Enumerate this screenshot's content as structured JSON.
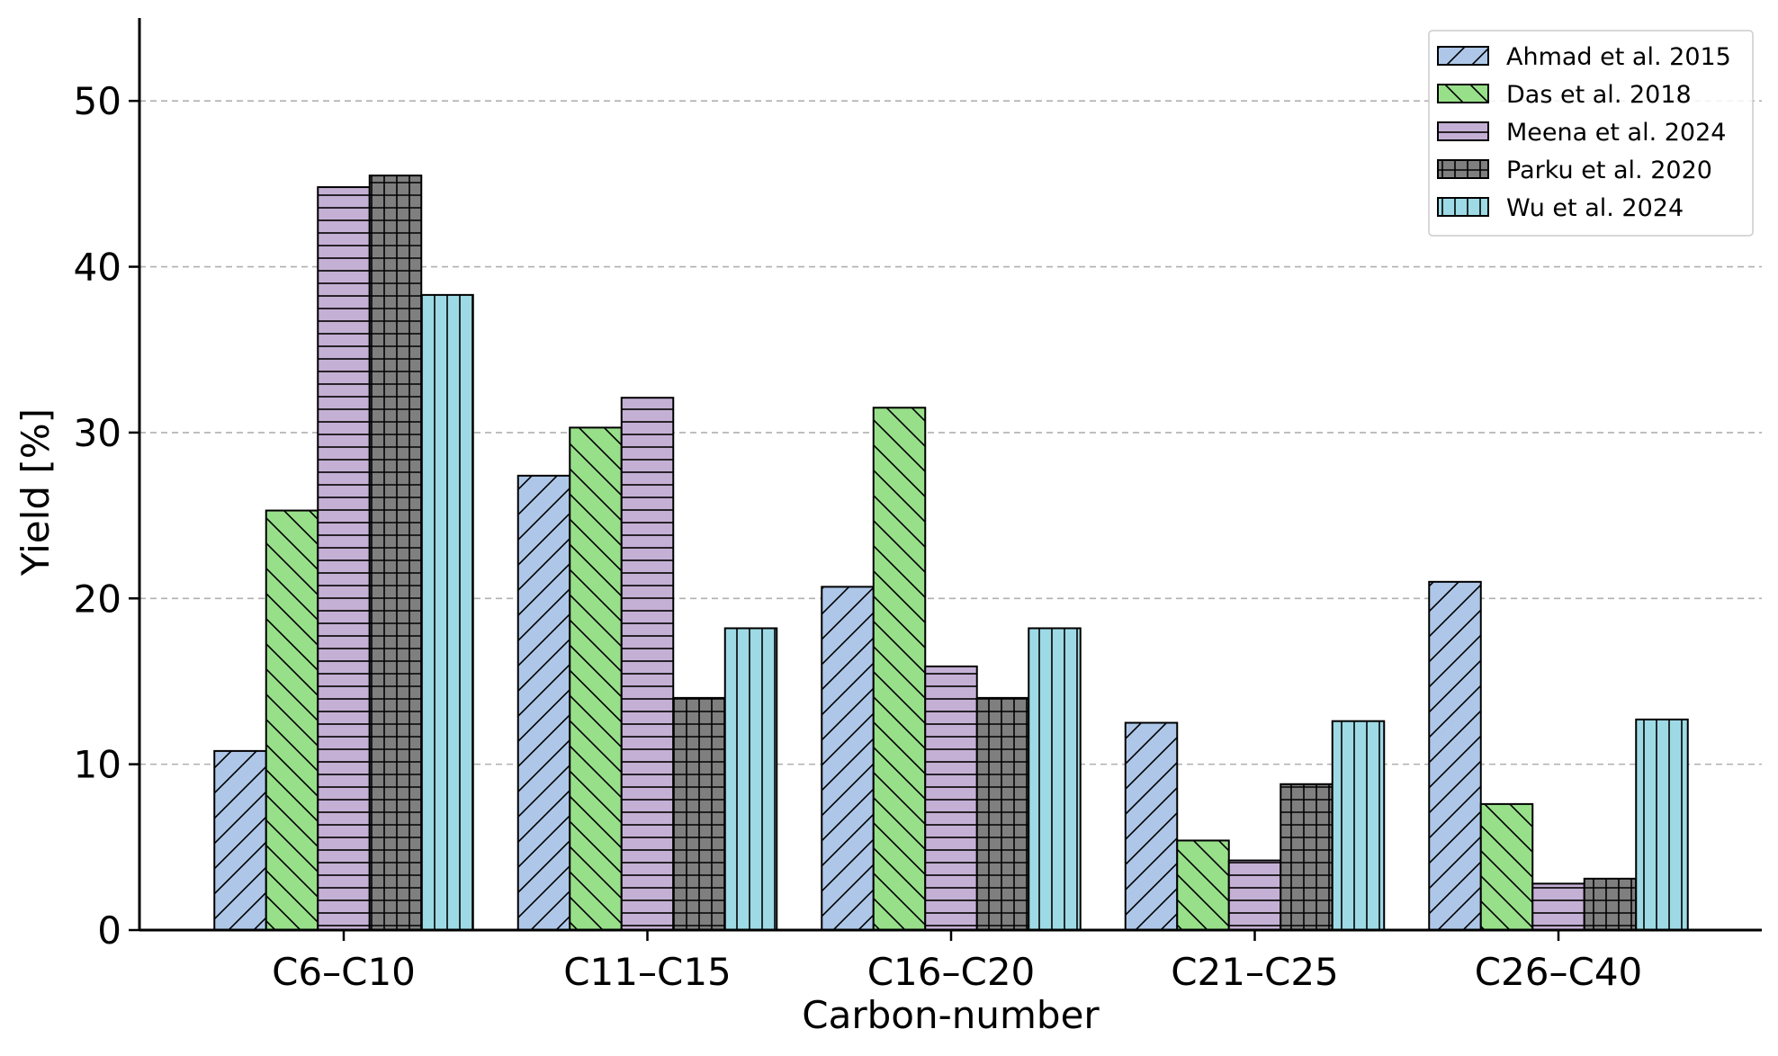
{
  "chart_data": {
    "type": "bar",
    "title": "",
    "xlabel": "Carbon-number",
    "ylabel": "Yield [%]",
    "ylim": [
      0,
      55
    ],
    "yticks": [
      0,
      10,
      20,
      30,
      40,
      50
    ],
    "grid": "y-dashed",
    "legend_position": "top-right",
    "categories": [
      "C6–C10",
      "C11–C15",
      "C16–C20",
      "C21–C25",
      "C26–C40"
    ],
    "series": [
      {
        "name": "Ahmad et al. 2015",
        "color": "#aec7e8",
        "hatch": "diag-up",
        "values": [
          10.8,
          27.4,
          20.7,
          12.5,
          21.0
        ]
      },
      {
        "name": "Das et al. 2018",
        "color": "#98df8a",
        "hatch": "diag-down",
        "values": [
          25.3,
          30.3,
          31.5,
          5.4,
          7.6
        ]
      },
      {
        "name": "Meena et al. 2024",
        "color": "#c5b0d5",
        "hatch": "horizontal",
        "values": [
          44.8,
          32.1,
          15.9,
          4.2,
          2.8
        ]
      },
      {
        "name": "Parku et al. 2020",
        "color": "#7f7f7f",
        "hatch": "grid",
        "values": [
          45.5,
          14.0,
          14.0,
          8.8,
          3.1
        ]
      },
      {
        "name": "Wu et al. 2024",
        "color": "#9edae5",
        "hatch": "vertical",
        "values": [
          38.3,
          18.2,
          18.2,
          12.6,
          12.7
        ]
      }
    ]
  }
}
